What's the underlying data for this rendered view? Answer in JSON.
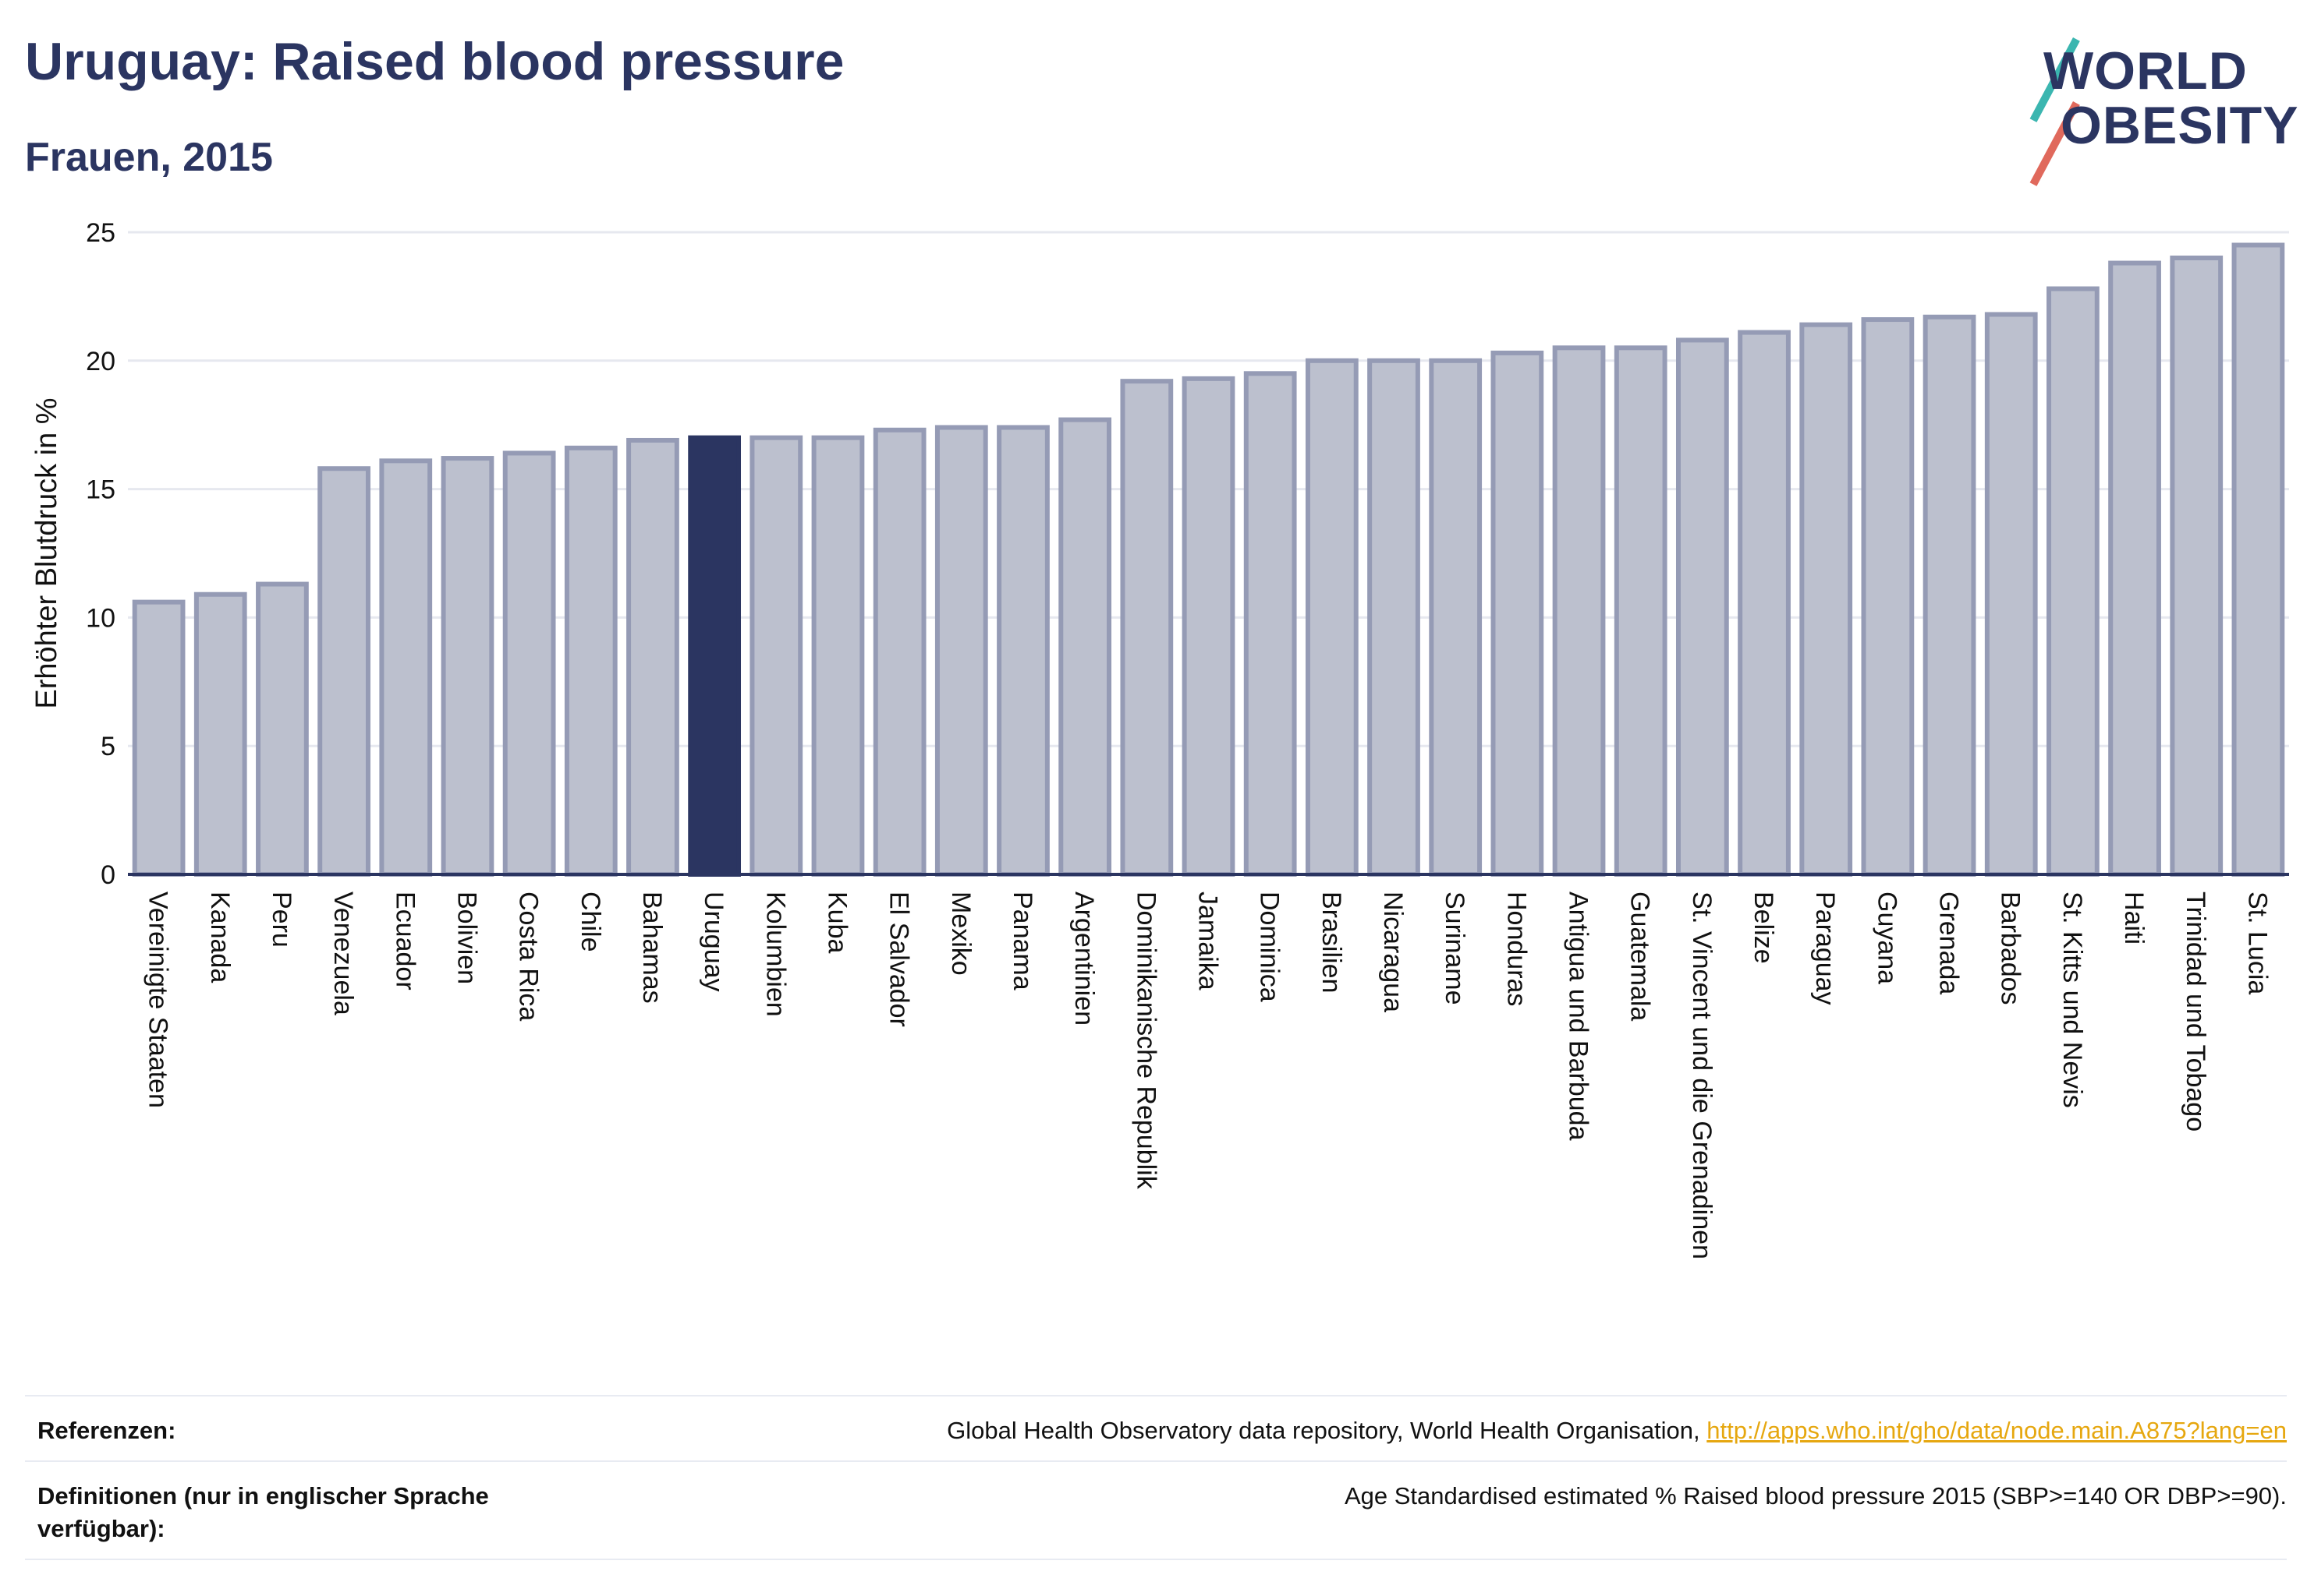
{
  "title": "Uruguay: Raised blood pressure",
  "subtitle": "Frauen, 2015",
  "logo": {
    "line1": "WORLD",
    "line2": "OBESITY"
  },
  "colors": {
    "bar": "#bcc0ce",
    "bar_stroke": "#959bb5",
    "highlight": "#2b3561",
    "grid": "#e6e8ef"
  },
  "chart_data": {
    "type": "bar",
    "ylabel": "Erhöhter Blutdruck in %",
    "xlabel": "",
    "ylim": [
      0,
      25
    ],
    "yticks": [
      0,
      5,
      10,
      15,
      20,
      25
    ],
    "grid": true,
    "highlight": "Uruguay",
    "categories": [
      "Vereinigte Staaten",
      "Kanada",
      "Peru",
      "Venezuela",
      "Ecuador",
      "Bolivien",
      "Costa Rica",
      "Chile",
      "Bahamas",
      "Uruguay",
      "Kolumbien",
      "Kuba",
      "El Salvador",
      "Mexiko",
      "Panama",
      "Argentinien",
      "Dominikanische Republik",
      "Jamaika",
      "Dominica",
      "Brasilien",
      "Nicaragua",
      "Suriname",
      "Honduras",
      "Antigua und Barbuda",
      "Guatemala",
      "St. Vincent und die Grenadinen",
      "Belize",
      "Paraguay",
      "Guyana",
      "Grenada",
      "Barbados",
      "St. Kitts und Nevis",
      "Haiti",
      "Trinidad und Tobago",
      "St. Lucia"
    ],
    "values": [
      10.6,
      10.9,
      11.3,
      15.8,
      16.1,
      16.2,
      16.4,
      16.6,
      16.9,
      17.0,
      17.0,
      17.0,
      17.3,
      17.4,
      17.4,
      17.7,
      19.2,
      19.3,
      19.5,
      20.0,
      20.0,
      20.0,
      20.3,
      20.5,
      20.5,
      20.8,
      21.1,
      21.4,
      21.6,
      21.7,
      21.8,
      22.8,
      23.8,
      24.0,
      24.5
    ]
  },
  "footer": {
    "references_label": "Referenzen:",
    "references_text": "Global Health Observatory data repository, World Health Organisation,",
    "references_link": "http://apps.who.int/gho/data/node.main.A875?lang=en",
    "definitions_label_line1": "Definitionen (nur in englischer Sprache",
    "definitions_label_line2": "verfügbar):",
    "definitions_text": "Age Standardised estimated % Raised blood pressure 2015 (SBP>=140 OR DBP>=90)."
  }
}
